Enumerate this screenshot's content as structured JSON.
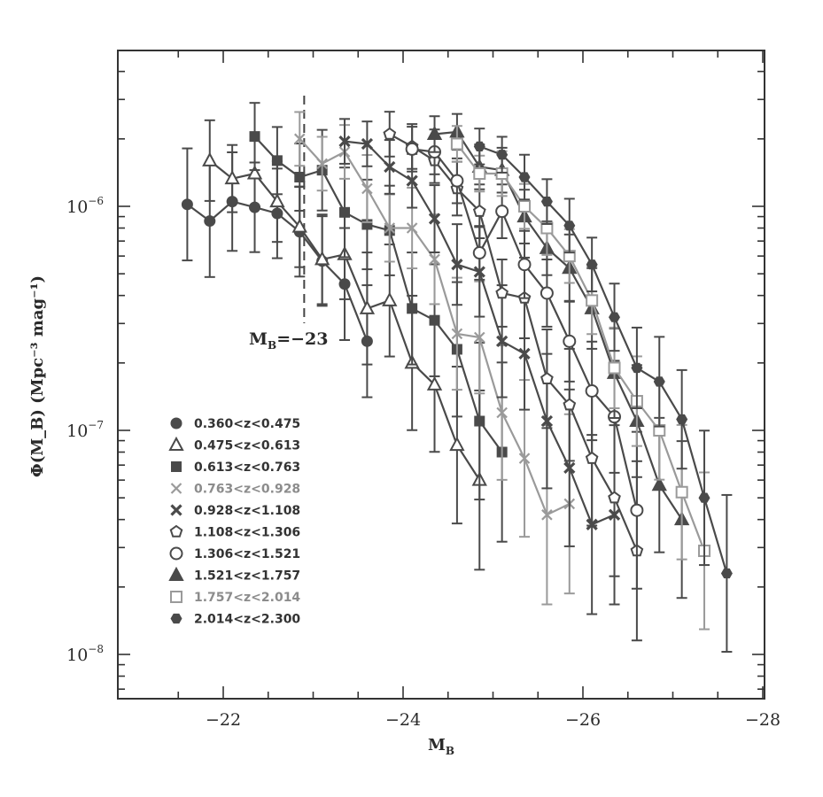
{
  "chart_data": {
    "type": "line",
    "xlabel": "M",
    "xlabel_sub": "B",
    "ylabel": "Φ(M_B) (Mpc⁻³ mag⁻¹)",
    "xlim": [
      -21,
      -28
    ],
    "ylim": [
      6e-09,
      4.4e-06
    ],
    "y_scale": "log",
    "grid": false,
    "legend_position": "lower-left",
    "x_ticks": [
      {
        "value": -22,
        "label": "−22"
      },
      {
        "value": -24,
        "label": "−24"
      },
      {
        "value": -26,
        "label": "−26"
      },
      {
        "value": -28,
        "label": "−28"
      }
    ],
    "y_ticks": [
      {
        "value": 1e-08,
        "base": "10",
        "exp": "−8"
      },
      {
        "value": 1e-07,
        "base": "10",
        "exp": "−7"
      },
      {
        "value": 1e-06,
        "base": "10",
        "exp": "−6"
      }
    ],
    "annotation": {
      "text": "M",
      "sub": "B",
      "rest": "=−23",
      "x": -22.9
    },
    "series": [
      {
        "name": "0.360<z<0.475",
        "marker": "circle-filled",
        "color": "#4a4a4a",
        "x": [
          -21.6,
          -21.85,
          -22.1,
          -22.35,
          -22.6,
          -22.85,
          -23.1,
          -23.35,
          -23.6
        ],
        "y": [
          1.02e-06,
          8.6e-07,
          1.05e-06,
          9.9e-07,
          9.3e-07,
          7.7e-07,
          5.7e-07,
          4.5e-07,
          2.5e-07
        ],
        "err": [
          0.25,
          0.25,
          0.22,
          0.2,
          0.2,
          0.2,
          0.2,
          0.25,
          0.25
        ]
      },
      {
        "name": "0.475<z<0.613",
        "marker": "triangle-open",
        "color": "#4a4a4a",
        "x": [
          -21.85,
          -22.1,
          -22.35,
          -22.6,
          -22.85,
          -23.1,
          -23.35,
          -23.6,
          -23.85,
          -24.1,
          -24.35,
          -24.6,
          -24.85
        ],
        "y": [
          1.6e-06,
          1.33e-06,
          1.4e-06,
          1.05e-06,
          8.1e-07,
          5.8e-07,
          6.1e-07,
          3.5e-07,
          3.8e-07,
          2e-07,
          1.6e-07,
          8.6e-08,
          6e-08
        ],
        "err": [
          0.18,
          0.15,
          0.15,
          0.18,
          0.18,
          0.2,
          0.2,
          0.25,
          0.25,
          0.3,
          0.3,
          0.35,
          0.4
        ]
      },
      {
        "name": "0.613<z<0.763",
        "marker": "square-filled",
        "color": "#4a4a4a",
        "x": [
          -22.35,
          -22.6,
          -22.85,
          -23.1,
          -23.35,
          -23.6,
          -23.85,
          -24.1,
          -24.35,
          -24.6,
          -24.85,
          -25.1
        ],
        "y": [
          2.05e-06,
          1.6e-06,
          1.35e-06,
          1.45e-06,
          9.4e-07,
          8.3e-07,
          7.8e-07,
          3.5e-07,
          3.1e-07,
          2.3e-07,
          1.1e-07,
          8e-08
        ],
        "err": [
          0.15,
          0.15,
          0.15,
          0.18,
          0.2,
          0.2,
          0.2,
          0.25,
          0.25,
          0.3,
          0.35,
          0.4
        ]
      },
      {
        "name": "0.763<z<0.928",
        "marker": "x",
        "color": "#9a9a9a",
        "x": [
          -22.85,
          -23.1,
          -23.35,
          -23.6,
          -23.85,
          -24.1,
          -24.35,
          -24.6,
          -24.85,
          -25.1,
          -25.35,
          -25.6,
          -25.85
        ],
        "y": [
          2e-06,
          1.55e-06,
          1.75e-06,
          1.2e-06,
          8e-07,
          8e-07,
          5.8e-07,
          2.7e-07,
          2.6e-07,
          1.2e-07,
          7.5e-08,
          4.2e-08,
          4.7e-08
        ],
        "err": [
          0.12,
          0.12,
          0.12,
          0.15,
          0.15,
          0.18,
          0.2,
          0.25,
          0.25,
          0.3,
          0.35,
          0.4,
          0.4
        ]
      },
      {
        "name": "0.928<z<1.108",
        "marker": "x-bold",
        "color": "#4a4a4a",
        "x": [
          -23.35,
          -23.6,
          -23.85,
          -24.1,
          -24.35,
          -24.6,
          -24.85,
          -25.1,
          -25.35,
          -25.6,
          -25.85,
          -26.1,
          -26.35
        ],
        "y": [
          1.95e-06,
          1.9e-06,
          1.5e-06,
          1.3e-06,
          8.8e-07,
          5.5e-07,
          5.1e-07,
          2.5e-07,
          2.2e-07,
          1.1e-07,
          6.8e-08,
          3.8e-08,
          4.2e-08
        ],
        "err": [
          0.1,
          0.1,
          0.12,
          0.12,
          0.15,
          0.18,
          0.2,
          0.25,
          0.25,
          0.3,
          0.35,
          0.4,
          0.4
        ]
      },
      {
        "name": "1.108<z<1.306",
        "marker": "pentagon-open",
        "color": "#4a4a4a",
        "x": [
          -23.85,
          -24.1,
          -24.35,
          -24.6,
          -24.85,
          -25.1,
          -25.35,
          -25.6,
          -25.85,
          -26.1,
          -26.35,
          -26.6
        ],
        "y": [
          2.1e-06,
          1.85e-06,
          1.6e-06,
          1.2e-06,
          9.5e-07,
          4.1e-07,
          3.9e-07,
          1.7e-07,
          1.3e-07,
          7.5e-08,
          5e-08,
          2.9e-08
        ],
        "err": [
          0.1,
          0.1,
          0.1,
          0.12,
          0.12,
          0.15,
          0.18,
          0.22,
          0.25,
          0.3,
          0.35,
          0.4
        ]
      },
      {
        "name": "1.306<z<1.521",
        "marker": "circle-open",
        "color": "#4a4a4a",
        "x": [
          -24.1,
          -24.35,
          -24.6,
          -24.85,
          -25.1,
          -25.35,
          -25.6,
          -25.85,
          -26.1,
          -26.35,
          -26.6
        ],
        "y": [
          1.8e-06,
          1.75e-06,
          1.3e-06,
          6.2e-07,
          9.5e-07,
          5.5e-07,
          4.1e-07,
          2.5e-07,
          1.5e-07,
          1.15e-07,
          4.4e-08
        ],
        "err": [
          0.1,
          0.1,
          0.1,
          0.12,
          0.12,
          0.15,
          0.15,
          0.18,
          0.22,
          0.25,
          0.35
        ]
      },
      {
        "name": "1.521<z<1.757",
        "marker": "triangle-filled",
        "color": "#4a4a4a",
        "x": [
          -24.35,
          -24.6,
          -24.85,
          -25.1,
          -25.35,
          -25.6,
          -25.85,
          -26.1,
          -26.35,
          -26.6,
          -26.85,
          -27.1
        ],
        "y": [
          2.1e-06,
          2.15e-06,
          1.5e-06,
          1.45e-06,
          9e-07,
          6.5e-07,
          5.3e-07,
          3.5e-07,
          1.8e-07,
          1.1e-07,
          5.7e-08,
          4e-08
        ],
        "err": [
          0.08,
          0.08,
          0.1,
          0.1,
          0.12,
          0.12,
          0.15,
          0.18,
          0.2,
          0.25,
          0.3,
          0.35
        ]
      },
      {
        "name": "1.757<z<2.014",
        "marker": "square-open",
        "color": "#9a9a9a",
        "x": [
          -24.6,
          -24.85,
          -25.1,
          -25.35,
          -25.6,
          -25.85,
          -26.1,
          -26.35,
          -26.6,
          -26.85,
          -27.1,
          -27.35
        ],
        "y": [
          1.9e-06,
          1.4e-06,
          1.4e-06,
          1e-06,
          8e-07,
          6e-07,
          3.8e-07,
          1.9e-07,
          1.35e-07,
          1e-07,
          5.3e-08,
          2.9e-08
        ],
        "err": [
          0.08,
          0.08,
          0.1,
          0.1,
          0.12,
          0.12,
          0.15,
          0.18,
          0.2,
          0.22,
          0.3,
          0.35
        ]
      },
      {
        "name": "2.014<z<2.300",
        "marker": "hexagon-filled",
        "color": "#4a4a4a",
        "x": [
          -24.85,
          -25.1,
          -25.35,
          -25.6,
          -25.85,
          -26.1,
          -26.35,
          -26.6,
          -26.85,
          -27.1,
          -27.35,
          -27.6
        ],
        "y": [
          1.85e-06,
          1.7e-06,
          1.35e-06,
          1.05e-06,
          8.2e-07,
          5.5e-07,
          3.2e-07,
          1.9e-07,
          1.65e-07,
          1.12e-07,
          5e-08,
          2.3e-08
        ],
        "err": [
          0.08,
          0.08,
          0.1,
          0.1,
          0.12,
          0.12,
          0.15,
          0.18,
          0.2,
          0.22,
          0.3,
          0.35
        ]
      }
    ]
  }
}
